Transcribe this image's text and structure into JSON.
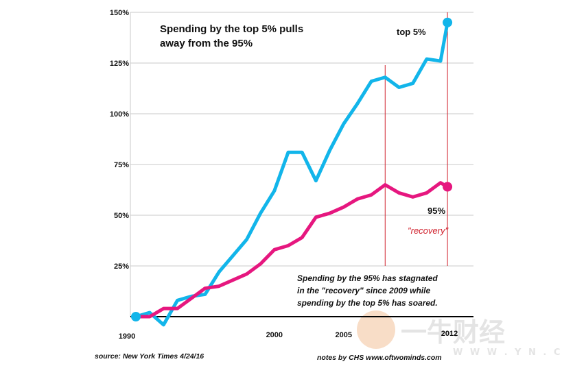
{
  "chart_data": {
    "type": "line",
    "title_lines": [
      "Spending by the top 5% pulls",
      "away from the 95%"
    ],
    "y_ticks": [
      "150%",
      "125%",
      "100%",
      "75%",
      "50%",
      "25%"
    ],
    "y_tick_values": [
      150,
      125,
      100,
      75,
      50,
      25
    ],
    "x_ticks": [
      "1990",
      "2000",
      "2005",
      "2012"
    ],
    "x_tick_values": [
      1990,
      2000,
      2005,
      2012
    ],
    "ylim": [
      0,
      150
    ],
    "xlim": [
      1990,
      2012
    ],
    "series": [
      {
        "name": "top 5%",
        "color": "#12b5ea",
        "x": [
          1990,
          1991,
          1992,
          1993,
          1994,
          1995,
          1996,
          1997,
          1998,
          1999,
          2000,
          2001,
          2002,
          2003,
          2004,
          2005,
          2006,
          2007,
          2008,
          2009,
          2010,
          2011,
          2012
        ],
        "values": [
          0,
          2,
          -4,
          8,
          10,
          11,
          22,
          30,
          38,
          51,
          62,
          81,
          81,
          67,
          82,
          95,
          105,
          116,
          118,
          113,
          115,
          127,
          126
        ]
      },
      {
        "name": "95%",
        "color": "#e6177f",
        "x": [
          1990,
          1991,
          1992,
          1993,
          1994,
          1995,
          1996,
          1997,
          1998,
          1999,
          2000,
          2001,
          2002,
          2003,
          2004,
          2005,
          2006,
          2007,
          2008,
          2009,
          2010,
          2011,
          2012
        ],
        "values": [
          0,
          0,
          4,
          4,
          9,
          14,
          15,
          18,
          21,
          26,
          33,
          35,
          39,
          49,
          51,
          54,
          58,
          60,
          65,
          61,
          59,
          61,
          66
        ]
      }
    ],
    "endpoints": [
      {
        "series": "top 5%",
        "x": 2012.5,
        "y": 145
      },
      {
        "series": "95%",
        "x": 2012.5,
        "y": 64
      }
    ],
    "recovery_markers_x": [
      2008,
      2012.5
    ],
    "labels": {
      "top5": "top 5%",
      "ninety_five": "95%",
      "recovery": "\"recovery\""
    },
    "note_lines": [
      "Spending by the 95% has stagnated",
      "in the \"recovery\" since 2009 while",
      "spending by the top 5% has soared."
    ],
    "source": "source: New York Times 4/24/16",
    "credit": "notes by CHS  www.oftwominds.com",
    "watermark": {
      "main": "一牛财经",
      "sub": "W W W . Y N . C O M"
    }
  }
}
